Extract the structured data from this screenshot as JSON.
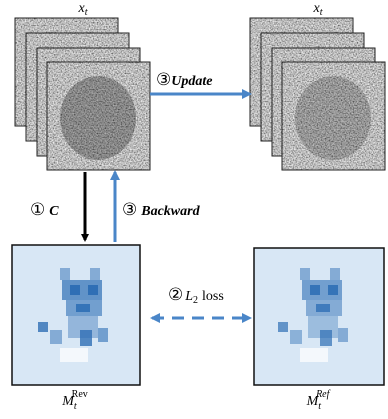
{
  "top_labels": [
    {
      "base": "x",
      "sub": "t"
    },
    {
      "base": "x",
      "sub": "t"
    }
  ],
  "arrows": {
    "update": {
      "step": "③",
      "text": "Update"
    },
    "compute": {
      "step": "①",
      "text": "C"
    },
    "backward": {
      "step": "③",
      "text": "Backward"
    },
    "loss": {
      "step": "②",
      "base": "L",
      "sub": "2",
      "text": "loss"
    }
  },
  "bottom_labels": [
    {
      "base": "M",
      "sub": "t",
      "sup": "Rev"
    },
    {
      "base": "M",
      "sub": "t",
      "sup": "Ref"
    }
  ]
}
